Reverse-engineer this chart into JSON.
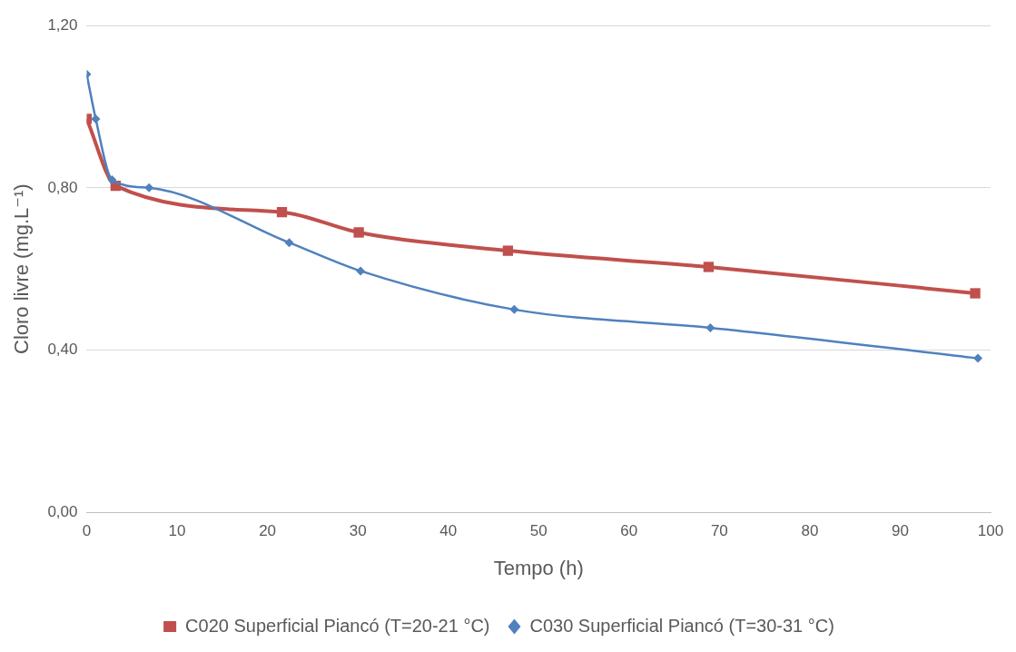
{
  "chart_data": {
    "type": "line",
    "xlabel": "Tempo (h)",
    "ylabel": "Cloro livre (mg.L⁻¹)",
    "xlim": [
      0,
      100
    ],
    "xticks": [
      0,
      10,
      20,
      30,
      40,
      50,
      60,
      70,
      80,
      90,
      100
    ],
    "ylim": [
      0,
      1.2
    ],
    "yticks": [
      {
        "value": 0,
        "label": "0,00"
      },
      {
        "value": 0.4,
        "label": "0,40"
      },
      {
        "value": 0.8,
        "label": "0,80"
      },
      {
        "value": 1.2,
        "label": "1,20"
      }
    ],
    "grid": "y",
    "legend": "bottom",
    "series": [
      {
        "name": "C020 Superficial Piancó (T=20-21 °C)",
        "color": "#c0504d",
        "marker": "square",
        "x": [
          0,
          3.2,
          21.6,
          30.1,
          46.6,
          68.8,
          98.3
        ],
        "values": [
          0.97,
          0.805,
          0.74,
          0.69,
          0.645,
          0.605,
          0.54
        ]
      },
      {
        "name": "C030 Superficial Piancó (T=30-31 °C)",
        "color": "#4f81bd",
        "marker": "diamond",
        "x": [
          0,
          1,
          2.8,
          6.9,
          22.4,
          30.3,
          47.3,
          69,
          98.6
        ],
        "values": [
          1.08,
          0.97,
          0.82,
          0.8,
          0.665,
          0.595,
          0.5,
          0.455,
          0.38
        ]
      }
    ]
  }
}
